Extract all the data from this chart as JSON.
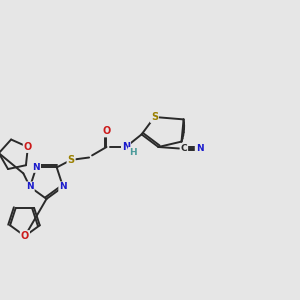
{
  "bg_color": "#e6e6e6",
  "bond_color": "#2a2a2a",
  "atom_colors": {
    "S": "#9a8000",
    "N": "#1a1acc",
    "O": "#cc1a1a",
    "C": "#2a2a2a",
    "H": "#4a9a9a"
  },
  "figsize": [
    3.0,
    3.0
  ],
  "dpi": 100
}
